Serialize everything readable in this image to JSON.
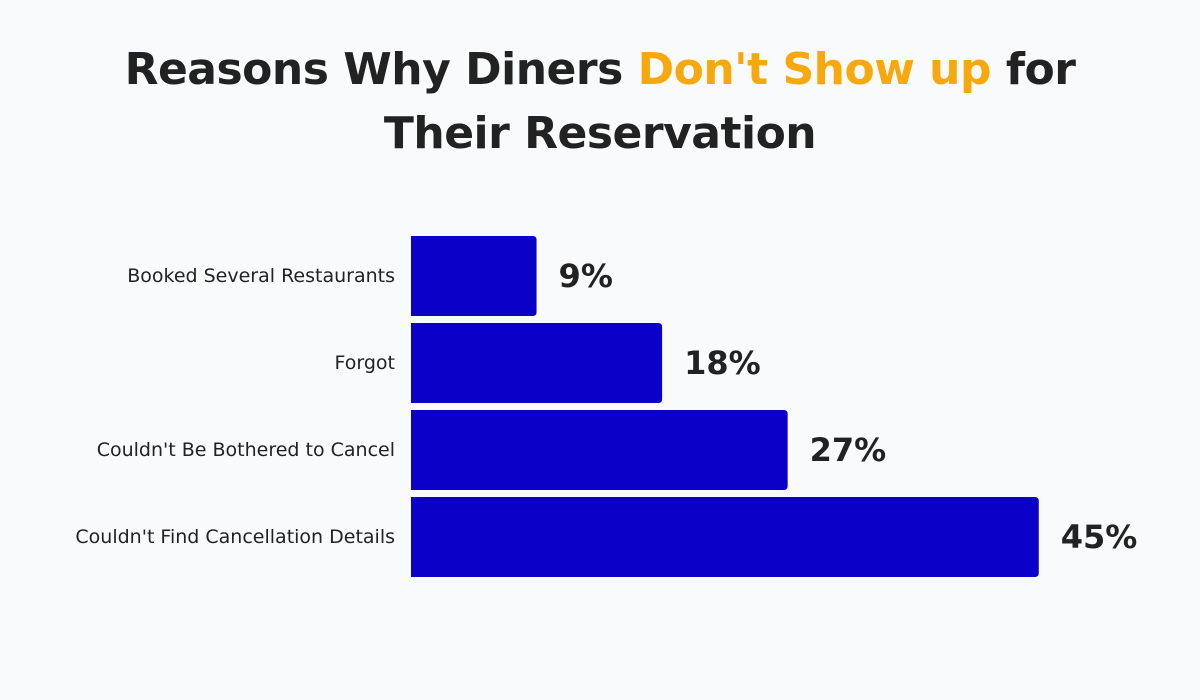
{
  "title": {
    "part1": "Reasons Why Diners ",
    "highlight": "Don't Show up",
    "part2": " for",
    "line2": "Their Reservation"
  },
  "colors": {
    "bar": "#0a00c8",
    "highlight": "#f7a80c",
    "text": "#222222",
    "background": "#f9fafb"
  },
  "chart_data": {
    "type": "bar",
    "orientation": "horizontal",
    "categories": [
      "Booked Several Restaurants",
      "Forgot",
      "Couldn't Be Bothered to Cancel",
      "Couldn't Find Cancellation Details"
    ],
    "values": [
      9,
      18,
      27,
      45
    ],
    "value_labels": [
      "9%",
      "18%",
      "27%",
      "45%"
    ],
    "unit": "%",
    "grid": false,
    "legend": "none"
  }
}
